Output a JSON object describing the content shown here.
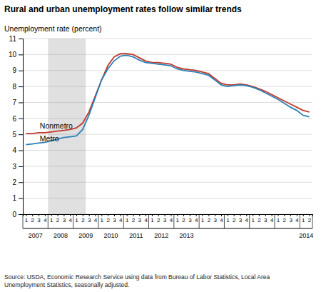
{
  "chart_data": {
    "type": "line",
    "title": "Rural and urban unemployment rates follow similar trends",
    "y_label": "Unemployment rate (percent)",
    "source": "Source: USDA, Economic Research Service using data from Bureau of Labor Statistics, Local Area\nUnemployment Statistics, seasonally adjusted.",
    "categories": [
      "1",
      "2",
      "3",
      "4",
      "1",
      "2",
      "3",
      "4",
      "1",
      "2",
      "3",
      "4",
      "1",
      "2",
      "3",
      "4",
      "1",
      "2",
      "3",
      "4",
      "1",
      "2",
      "3",
      "4",
      "1",
      "2",
      "3",
      "4",
      "1",
      "2",
      "3",
      "4",
      "1",
      "2",
      "3",
      "4",
      "1",
      "2",
      "3",
      "4",
      "1",
      "2",
      "3",
      "4",
      "1",
      "2"
    ],
    "year_labels": [
      "2007",
      "2008",
      "2009",
      "2010",
      "2011",
      "2012",
      "2013",
      "2014"
    ],
    "year_centers": [
      1.5,
      5.5,
      9.5,
      13.5,
      17.5,
      21.5,
      25.5,
      44.5
    ],
    "shade": {
      "from": 4,
      "to": 10,
      "color": "#e0e0e0"
    },
    "series": [
      {
        "name": "Nonmetro",
        "color": "#c0392b",
        "label": {
          "x": 2.2,
          "y": 5.35
        },
        "values": [
          5.05,
          5.05,
          5.1,
          5.1,
          5.15,
          5.2,
          5.25,
          5.3,
          5.4,
          5.7,
          6.4,
          7.4,
          8.4,
          9.3,
          9.85,
          10.05,
          10.05,
          10.0,
          9.8,
          9.6,
          9.5,
          9.5,
          9.45,
          9.4,
          9.2,
          9.1,
          9.05,
          9.0,
          8.9,
          8.8,
          8.5,
          8.2,
          8.1,
          8.1,
          8.15,
          8.1,
          8.0,
          7.85,
          7.7,
          7.5,
          7.3,
          7.1,
          6.9,
          6.7,
          6.5,
          6.4
        ]
      },
      {
        "name": "Metro",
        "color": "#2980b9",
        "label": {
          "x": 2.2,
          "y": 4.55
        },
        "values": [
          4.35,
          4.4,
          4.45,
          4.5,
          4.6,
          4.7,
          4.8,
          4.85,
          4.9,
          5.3,
          6.2,
          7.3,
          8.4,
          9.1,
          9.6,
          9.9,
          9.95,
          9.85,
          9.65,
          9.5,
          9.45,
          9.4,
          9.35,
          9.3,
          9.1,
          9.0,
          8.95,
          8.9,
          8.8,
          8.7,
          8.4,
          8.1,
          8.0,
          8.05,
          8.1,
          8.05,
          7.95,
          7.8,
          7.6,
          7.4,
          7.2,
          6.95,
          6.7,
          6.5,
          6.2,
          6.1
        ]
      }
    ],
    "ylim": [
      0,
      11
    ],
    "yticks": [
      0,
      1,
      2,
      3,
      4,
      5,
      6,
      7,
      8,
      9,
      10,
      11
    ],
    "grid": true
  }
}
